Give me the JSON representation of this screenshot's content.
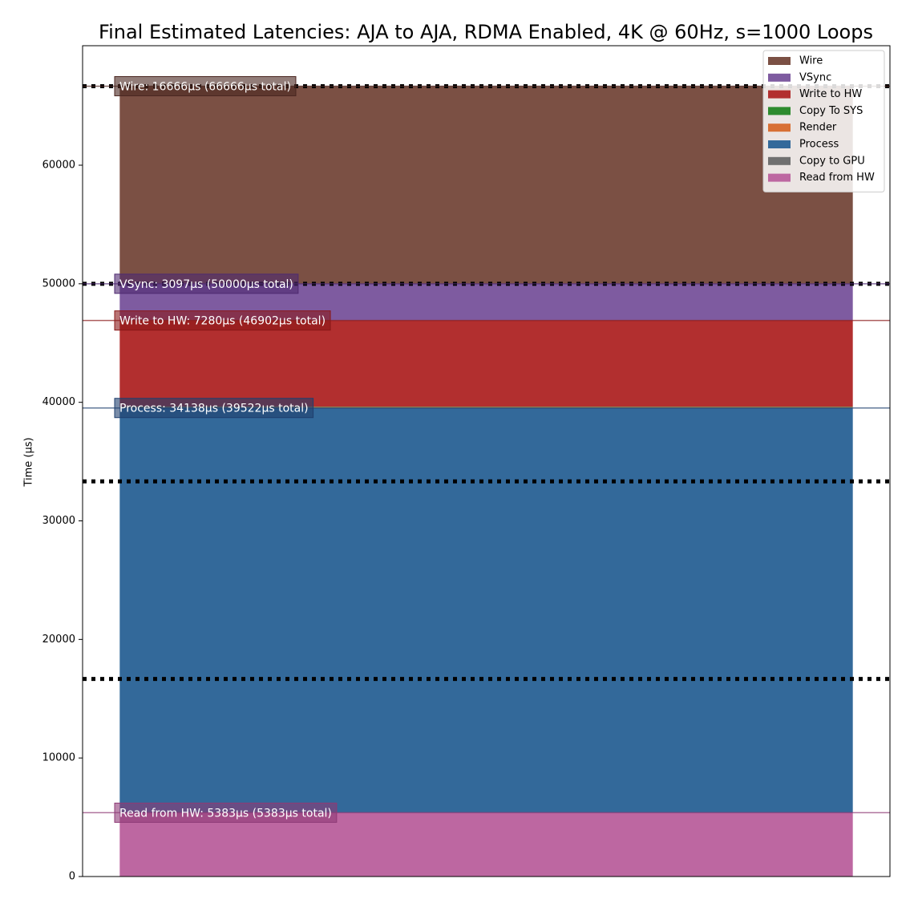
{
  "chart_data": {
    "type": "stacked-bar",
    "title": "Final Estimated Latencies: AJA to AJA, RDMA Enabled, 4K @ 60Hz, s=1000 Loops",
    "y_label": "Time (µs)",
    "categories": [
      null
    ],
    "series": [
      {
        "name": "Read from HW",
        "color": "#bd67a1",
        "values": [
          5383
        ]
      },
      {
        "name": "Copy to GPU",
        "color": "#707070",
        "values": [
          1
        ]
      },
      {
        "name": "Process",
        "color": "#33699a",
        "values": [
          34138
        ]
      },
      {
        "name": "Render",
        "color": "#d87035",
        "values": [
          60
        ]
      },
      {
        "name": "Copy To SYS",
        "color": "#2e8b2e",
        "values": [
          40
        ]
      },
      {
        "name": "Write to HW",
        "color": "#b22f2f",
        "values": [
          7280
        ]
      },
      {
        "name": "VSync",
        "color": "#7e5ba0",
        "values": [
          3097
        ]
      },
      {
        "name": "Wire",
        "color": "#7b5044",
        "values": [
          16666
        ]
      }
    ],
    "ylim": [
      0,
      70080
    ],
    "yticks": [
      0,
      10000,
      20000,
      30000,
      40000,
      50000,
      60000
    ],
    "grid": false,
    "legend": "upper right",
    "reference_lines": [
      {
        "y": 16666,
        "style": "dotted",
        "color": "#000000"
      },
      {
        "y": 33333,
        "style": "dotted",
        "color": "#000000"
      },
      {
        "y": 50000,
        "style": "dotted",
        "color": "#000000"
      },
      {
        "y": 66666,
        "style": "dotted",
        "color": "#000000"
      }
    ],
    "annotations": [
      {
        "y": 66666,
        "text": "Wire: 16666µs (66666µs total)",
        "color": "#4a2620"
      },
      {
        "y": 50000,
        "text": "VSync: 3097µs (50000µs total)",
        "color": "#4e2a70"
      },
      {
        "y": 46902,
        "text": "Write to HW: 7280µs (46902µs total)",
        "color": "#8a1818"
      },
      {
        "y": 39522,
        "text": "Process: 34138µs (39522µs total)",
        "color": "#1f3f6e"
      },
      {
        "y": 5383,
        "text": "Read from HW: 5383µs (5383µs total)",
        "color": "#8e3a76"
      }
    ]
  }
}
